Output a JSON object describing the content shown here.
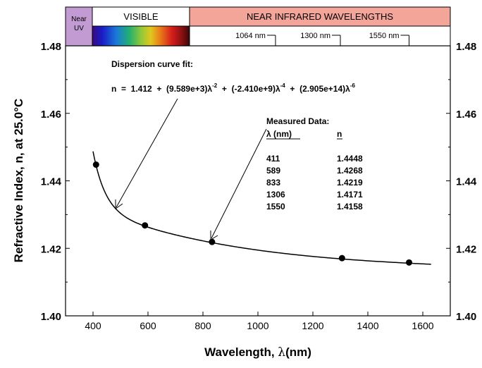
{
  "spectrum_bar": {
    "near_uv_line1": "Near",
    "near_uv_line2": "UV",
    "visible": "VISIBLE",
    "near_infrared": "NEAR INFRARED WAVELENGTHS",
    "near_uv_color": "#c39bd3",
    "near_infrared_color": "#f4a59a",
    "markers": [
      {
        "label": "1064 nm",
        "wavelength": 1064
      },
      {
        "label": "1300 nm",
        "wavelength": 1300
      },
      {
        "label": "1550 nm",
        "wavelength": 1550
      }
    ]
  },
  "chart_data": {
    "type": "scatter",
    "xlabel_prefix": "Wavelength, ",
    "xlabel_symbol": "λ",
    "xlabel_suffix": "(nm)",
    "ylabel": "Refractive Index, n, at 25.0°C",
    "xlim": [
      300,
      1700
    ],
    "ylim": [
      1.4,
      1.48
    ],
    "x_ticks": [
      "400",
      "600",
      "800",
      "1000",
      "1200",
      "1400",
      "1600"
    ],
    "y_ticks": [
      "1.40",
      "1.42",
      "1.44",
      "1.46",
      "1.48"
    ],
    "points": [
      {
        "x": 411,
        "y": 1.4448
      },
      {
        "x": 589,
        "y": 1.4268
      },
      {
        "x": 833,
        "y": 1.4219
      },
      {
        "x": 1306,
        "y": 1.4171
      },
      {
        "x": 1550,
        "y": 1.4158
      }
    ],
    "fit": {
      "A": 1.412,
      "B": 9589,
      "C": -2410000000,
      "D": 290500000000000,
      "x_range": [
        400,
        1630
      ]
    },
    "annotation_fit_title": "Dispersion curve fit:",
    "annotation_fit_equation": {
      "seg1": "n  =  1.412  +  (9.589e+3)λ",
      "sup1": "-2",
      "seg2": "  +  (-2.410e+9)λ",
      "sup2": "-4",
      "seg3": "  +  (2.905e+14)λ",
      "sup3": "-6"
    },
    "measured_table": {
      "title": "Measured Data:",
      "col1": "λ (nm)",
      "col2": "n",
      "rows": [
        [
          "411",
          "1.4448"
        ],
        [
          "589",
          "1.4268"
        ],
        [
          "833",
          "1.4219"
        ],
        [
          "1306",
          "1.4171"
        ],
        [
          "1550",
          "1.4158"
        ]
      ]
    }
  }
}
